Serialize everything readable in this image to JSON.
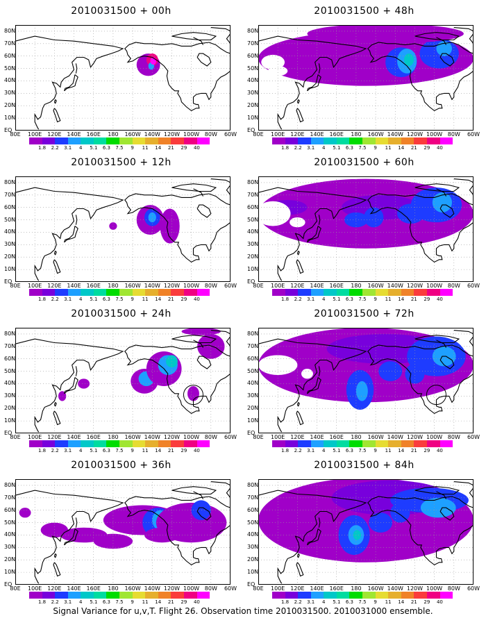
{
  "figure": {
    "caption": "Signal Variance for u,v,T. Flight 26. Observation time 2010031500. 2010031000 ensemble."
  },
  "axes": {
    "lat_labels": [
      "EQ",
      "10N",
      "20N",
      "30N",
      "40N",
      "50N",
      "60N",
      "70N",
      "80N"
    ],
    "lon_labels": [
      "80E",
      "100E",
      "120E",
      "140E",
      "160E",
      "180",
      "160W",
      "140W",
      "120W",
      "100W",
      "80W",
      "60W"
    ]
  },
  "colorbar": {
    "levels": [
      "1.8",
      "2.2",
      "3.1",
      "4",
      "5.1",
      "6.3",
      "7.5",
      "9",
      "11",
      "14",
      "21",
      "29",
      "40"
    ],
    "colors": [
      "#a000c8",
      "#7800dc",
      "#1e3cff",
      "#1ea0ff",
      "#00c8c8",
      "#00dca0",
      "#00dc00",
      "#a0e632",
      "#e6dc32",
      "#e6af2d",
      "#f08228",
      "#fa3c3c",
      "#f00082",
      "#ff00ff"
    ]
  },
  "panels": [
    {
      "title": "2010031500 + 00h",
      "lead_hours": 0
    },
    {
      "title": "2010031500 + 48h",
      "lead_hours": 48
    },
    {
      "title": "2010031500 + 12h",
      "lead_hours": 12
    },
    {
      "title": "2010031500 + 60h",
      "lead_hours": 60
    },
    {
      "title": "2010031500 + 24h",
      "lead_hours": 24
    },
    {
      "title": "2010031500 + 72h",
      "lead_hours": 72
    },
    {
      "title": "2010031500 + 36h",
      "lead_hours": 36
    },
    {
      "title": "2010031500 + 84h",
      "lead_hours": 84
    }
  ]
}
